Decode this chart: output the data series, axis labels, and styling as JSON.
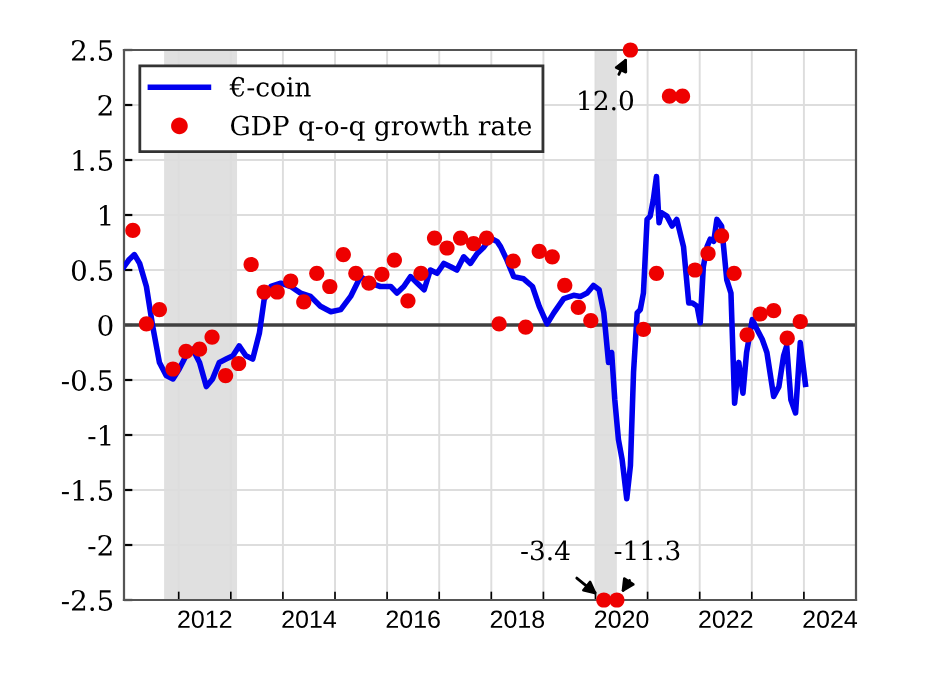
{
  "chart_data": {
    "type": "line",
    "series": [
      {
        "name": "€-coin",
        "color": "#0000ee",
        "marker": "none",
        "line_style": "solid",
        "x": [
          2010.45,
          2010.54,
          2010.65,
          2010.75,
          2010.88,
          2011.0,
          2011.13,
          2011.26,
          2011.39,
          2011.51,
          2011.64,
          2011.77,
          2011.9,
          2012.03,
          2012.15,
          2012.28,
          2012.41,
          2012.54,
          2012.66,
          2012.79,
          2012.92,
          2013.05,
          2013.14,
          2013.27,
          2013.46,
          2013.65,
          2013.84,
          2014.03,
          2014.22,
          2014.42,
          2014.61,
          2014.8,
          2014.99,
          2015.18,
          2015.37,
          2015.57,
          2015.69,
          2015.82,
          2015.95,
          2016.08,
          2016.21,
          2016.33,
          2016.46,
          2016.59,
          2016.72,
          2016.84,
          2016.97,
          2017.1,
          2017.23,
          2017.36,
          2017.48,
          2017.61,
          2017.68,
          2017.8,
          2017.93,
          2018.12,
          2018.29,
          2018.42,
          2018.57,
          2018.7,
          2018.89,
          2019.08,
          2019.21,
          2019.34,
          2019.46,
          2019.57,
          2019.66,
          2019.75,
          2019.81,
          2019.87,
          2019.94,
          2020.01,
          2020.1,
          2020.17,
          2020.23,
          2020.3,
          2020.36,
          2020.42,
          2020.49,
          2020.55,
          2020.61,
          2020.67,
          2020.72,
          2020.77,
          2020.87,
          2020.97,
          2021.06,
          2021.19,
          2021.29,
          2021.36,
          2021.45,
          2021.51,
          2021.57,
          2021.64,
          2021.7,
          2021.77,
          2021.83,
          2021.92,
          2022.02,
          2022.1,
          2022.17,
          2022.25,
          2022.33,
          2022.4,
          2022.51,
          2022.6,
          2022.7,
          2022.79,
          2022.92,
          2023.02,
          2023.11,
          2023.17,
          2023.25,
          2023.34,
          2023.43,
          2023.53
        ],
        "values": [
          0.53,
          0.59,
          0.64,
          0.56,
          0.35,
          -0.01,
          -0.34,
          -0.46,
          -0.49,
          -0.4,
          -0.28,
          -0.22,
          -0.34,
          -0.56,
          -0.49,
          -0.34,
          -0.31,
          -0.28,
          -0.19,
          -0.28,
          -0.31,
          -0.07,
          0.23,
          0.35,
          0.38,
          0.35,
          0.29,
          0.26,
          0.17,
          0.12,
          0.14,
          0.26,
          0.44,
          0.38,
          0.35,
          0.35,
          0.29,
          0.35,
          0.44,
          0.38,
          0.32,
          0.5,
          0.47,
          0.56,
          0.53,
          0.5,
          0.62,
          0.56,
          0.65,
          0.71,
          0.79,
          0.76,
          0.71,
          0.59,
          0.44,
          0.42,
          0.35,
          0.17,
          0.01,
          0.11,
          0.24,
          0.27,
          0.26,
          0.29,
          0.36,
          0.32,
          0.11,
          -0.34,
          -0.25,
          -0.68,
          -1.04,
          -1.22,
          -1.58,
          -1.28,
          -0.43,
          0.11,
          0.14,
          0.29,
          0.96,
          0.99,
          1.14,
          1.35,
          0.93,
          1.02,
          0.99,
          0.9,
          0.96,
          0.71,
          0.2,
          0.2,
          0.17,
          0.02,
          0.53,
          0.71,
          0.78,
          0.76,
          0.96,
          0.9,
          0.41,
          0.29,
          -0.71,
          -0.34,
          -0.62,
          -0.25,
          0.05,
          -0.04,
          -0.13,
          -0.25,
          -0.65,
          -0.56,
          -0.28,
          -0.19,
          -0.68,
          -0.8,
          -0.16,
          -0.54
        ]
      },
      {
        "name": "GDP q-o-q growth rate",
        "type": "scatter",
        "color": "#ee0000",
        "marker": "circle",
        "x": [
          2010.62,
          2010.88,
          2011.13,
          2011.39,
          2011.64,
          2011.9,
          2012.14,
          2012.4,
          2012.65,
          2012.89,
          2013.14,
          2013.39,
          2013.65,
          2013.9,
          2014.15,
          2014.4,
          2014.66,
          2014.9,
          2015.15,
          2015.4,
          2015.64,
          2015.9,
          2016.15,
          2016.41,
          2016.65,
          2016.91,
          2017.16,
          2017.41,
          2017.65,
          2017.92,
          2018.16,
          2018.42,
          2018.67,
          2018.91,
          2019.17,
          2019.41,
          2019.66,
          2019.91,
          2020.17,
          2020.42,
          2020.67,
          2020.92,
          2021.17,
          2021.41,
          2021.66,
          2021.92,
          2022.16,
          2022.41,
          2022.66,
          2022.92,
          2023.18,
          2023.43
        ],
        "values": [
          0.86,
          0.01,
          0.14,
          -0.4,
          -0.24,
          -0.22,
          -0.11,
          -0.46,
          -0.35,
          0.55,
          0.3,
          0.3,
          0.4,
          0.21,
          0.47,
          0.35,
          0.64,
          0.47,
          0.38,
          0.46,
          0.59,
          0.22,
          0.47,
          0.79,
          0.7,
          0.79,
          0.74,
          0.79,
          0.01,
          0.58,
          -0.02,
          0.67,
          0.62,
          0.36,
          0.16,
          0.04,
          -2.5,
          -2.5,
          2.5,
          -0.04,
          0.47,
          2.08,
          2.08,
          0.5,
          0.65,
          0.81,
          0.47,
          -0.09,
          0.1,
          0.13,
          -0.12,
          0.03
        ]
      }
    ],
    "xlim": [
      2010.45,
      2024.5
    ],
    "xticks": [
      {
        "value": 2011.5,
        "label": null
      },
      {
        "value": 2012.5,
        "label": null
      },
      {
        "value": 2013.5,
        "label": null
      },
      {
        "value": 2014.5,
        "label": null
      },
      {
        "value": 2015.5,
        "label": null
      },
      {
        "value": 2016.5,
        "label": null
      },
      {
        "value": 2017.5,
        "label": null
      },
      {
        "value": 2018.5,
        "label": null
      },
      {
        "value": 2019.5,
        "label": null
      },
      {
        "value": 2020.5,
        "label": null
      },
      {
        "value": 2021.5,
        "label": null
      },
      {
        "value": 2022.5,
        "label": null
      },
      {
        "value": 2023.5,
        "label": null
      },
      2012,
      2014,
      2016,
      2018,
      2020,
      2022,
      2024
    ],
    "ylim": [
      -2.5,
      2.5
    ],
    "yticks": [
      -2.5,
      -2,
      -1.5,
      -1,
      -0.5,
      0,
      0.5,
      1,
      1.5,
      2,
      2.5
    ],
    "grid": true,
    "legend": "top left",
    "ref_lines": [
      {
        "axis": "y",
        "value": 0,
        "color": "#404040"
      }
    ],
    "bands": [
      {
        "axis": "x",
        "from": 2011.22,
        "to": 2012.62,
        "color": "#e0e0e0"
      },
      {
        "axis": "x",
        "from": 2019.5,
        "to": 2019.91,
        "color": "#e0e0e0"
      }
    ],
    "annotations": [
      {
        "text": "12.0",
        "x": 2020.17,
        "y": 2.5
      },
      {
        "text": "-3.4",
        "x": 2019.66,
        "y": -2.5
      },
      {
        "text": "-11.3",
        "x": 2019.91,
        "y": -2.5
      }
    ]
  }
}
